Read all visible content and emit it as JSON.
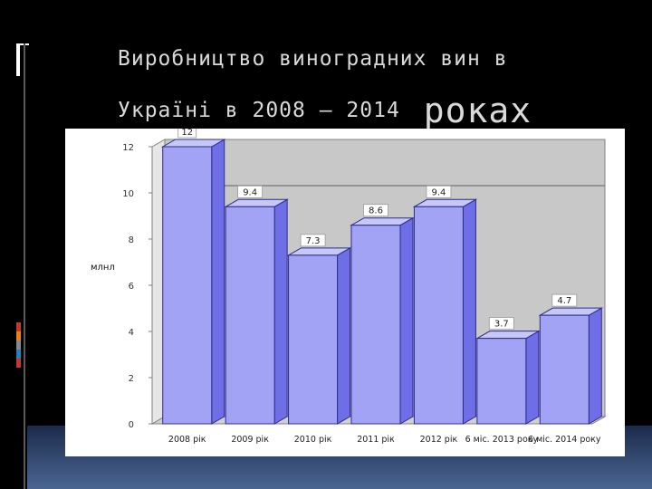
{
  "slide": {
    "title_line1": "Виробництво виноградних вин в",
    "title_line2_a": "Україні в 2008 – 2014",
    "title_line2_b": "роках",
    "colors": {
      "background": "#000000",
      "bar_front": "#a3a3f5",
      "bar_side": "#6e6ee6",
      "bar_top": "#c7c7fa",
      "bar_edge": "#2c2c8a",
      "plot_back": "#c8c8c8",
      "accents": [
        "#c0392b",
        "#e67e22",
        "#7f8c8d",
        "#2980b9",
        "#c0392b"
      ]
    }
  },
  "chart_data": {
    "type": "bar",
    "ylabel": "млнл",
    "ylim": [
      0,
      12
    ],
    "yticks": [
      "0",
      "2",
      "4",
      "6",
      "8",
      "10",
      "12"
    ],
    "categories": [
      "2008 рік",
      "2009 рік",
      "2010 рік",
      "2011 рік",
      "2012 рік",
      "6 міс. 2013 року",
      "6 міс. 2014 року"
    ],
    "category_labels_display": [
      "2008 рік",
      "2009 рік",
      "2010 рік",
      "2011 рік",
      "2012 рік",
      "6 міс. 2013 року",
      "6 міс. 2014 року"
    ],
    "values": [
      12,
      9.4,
      7.3,
      8.6,
      9.4,
      3.7,
      4.7
    ],
    "data_labels": [
      "12",
      "9.4",
      "7.3",
      "8.6",
      "9.4",
      "3.7",
      "4.7"
    ],
    "style": "3d-column",
    "grid": false
  }
}
